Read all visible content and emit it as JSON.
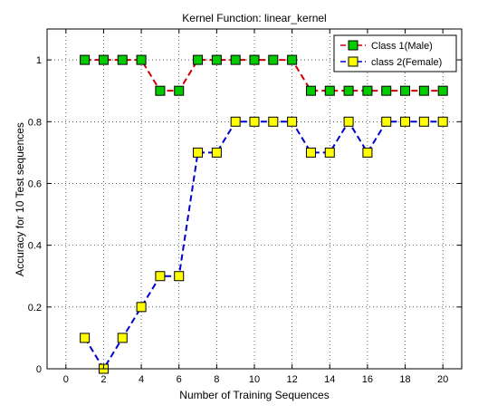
{
  "chart_data": {
    "type": "line",
    "title": "Kernel Function: linear_kernel",
    "xlabel": "Number of Training Sequences",
    "ylabel": "Accuracy for 10 Test sequences",
    "xlim": [
      -1,
      21
    ],
    "ylim": [
      0,
      1.1
    ],
    "xticks": [
      0,
      2,
      4,
      6,
      8,
      10,
      12,
      14,
      16,
      18,
      20
    ],
    "yticks": [
      0,
      0.2,
      0.4,
      0.6,
      0.8,
      1
    ],
    "xtick_labels": [
      "0",
      "2",
      "4",
      "6",
      "8",
      "10",
      "12",
      "14",
      "16",
      "18",
      "20"
    ],
    "ytick_labels": [
      "0",
      "0.2",
      "0.4",
      "0.6",
      "0.8",
      "1"
    ],
    "grid": true,
    "legend_position": "top-right",
    "x": [
      1,
      2,
      3,
      4,
      5,
      6,
      7,
      8,
      9,
      10,
      11,
      12,
      13,
      14,
      15,
      16,
      17,
      18,
      19,
      20
    ],
    "series": [
      {
        "name": "Class 1(Male)",
        "line_color": "#cc0000",
        "marker_color": "#00cc00",
        "values": [
          1,
          1,
          1,
          1,
          0.9,
          0.9,
          1,
          1,
          1,
          1,
          1,
          1,
          0.9,
          0.9,
          0.9,
          0.9,
          0.9,
          0.9,
          0.9,
          0.9
        ]
      },
      {
        "name": "class 2(Female)",
        "line_color": "#0000cc",
        "marker_color": "#ffff00",
        "values": [
          0.1,
          0,
          0.1,
          0.2,
          0.3,
          0.3,
          0.7,
          0.7,
          0.8,
          0.8,
          0.8,
          0.8,
          0.7,
          0.7,
          0.8,
          0.7,
          0.8,
          0.8,
          0.8,
          0.8
        ]
      }
    ]
  }
}
